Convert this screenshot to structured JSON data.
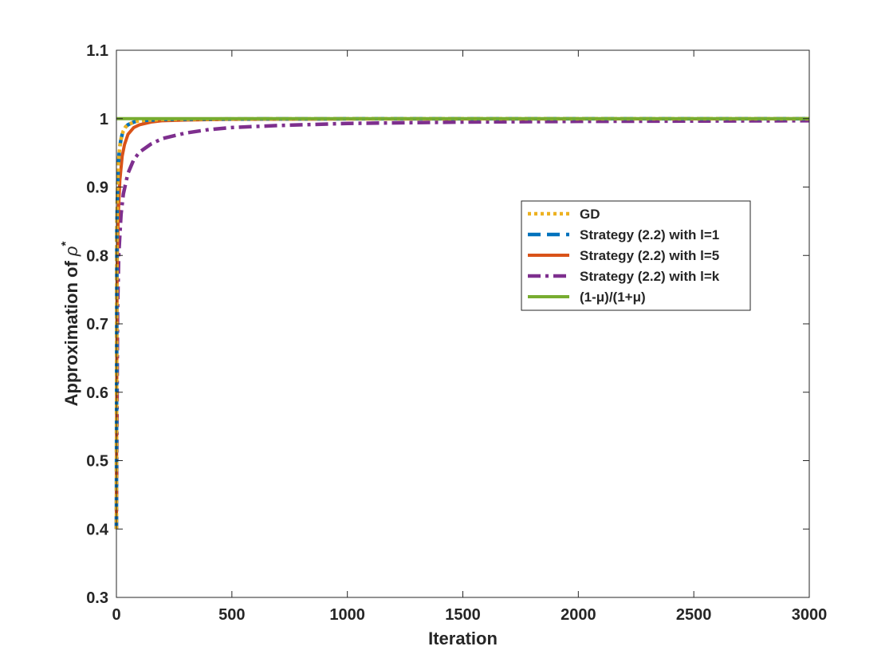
{
  "chart_data": {
    "type": "line",
    "title": "",
    "xlabel": "Iteration",
    "ylabel": "Approximation of ρ*",
    "ylabel_parts": {
      "text": "Approximation of ",
      "symbol": "ρ",
      "superscript": "*"
    },
    "xlim": [
      0,
      3000
    ],
    "ylim": [
      0.3,
      1.1
    ],
    "xticks": [
      0,
      500,
      1000,
      1500,
      2000,
      2500,
      3000
    ],
    "xtick_labels": [
      "0",
      "500",
      "1000",
      "1500",
      "2000",
      "2500",
      "3000"
    ],
    "yticks": [
      0.3,
      0.4,
      0.5,
      0.6,
      0.7,
      0.8,
      0.9,
      1,
      1.1
    ],
    "ytick_labels": [
      "0.3",
      "0.4",
      "0.5",
      "0.6",
      "0.7",
      "0.8",
      "0.9",
      "1",
      "1.1"
    ],
    "grid": false,
    "legend_position": "center-right",
    "series": [
      {
        "name": "GD",
        "color": "#EDB120",
        "style": "dotted",
        "x": [
          0,
          2,
          5,
          8,
          12,
          16,
          20,
          25,
          30,
          40,
          50,
          75,
          100,
          200,
          500,
          1000,
          3000
        ],
        "y": [
          0.4,
          0.84,
          0.9,
          0.93,
          0.95,
          0.962,
          0.97,
          0.977,
          0.982,
          0.988,
          0.991,
          0.995,
          0.997,
          0.999,
          0.9996,
          0.9998,
          0.9999
        ]
      },
      {
        "name": "Strategy (2.2) with l=1",
        "color": "#0072BD",
        "style": "dashed",
        "x": [
          0,
          2,
          5,
          8,
          12,
          16,
          20,
          25,
          30,
          40,
          50,
          75,
          100,
          200,
          500,
          1000,
          3000
        ],
        "y": [
          0.4,
          0.84,
          0.9,
          0.93,
          0.95,
          0.962,
          0.97,
          0.977,
          0.982,
          0.988,
          0.991,
          0.995,
          0.997,
          0.999,
          0.9996,
          0.9998,
          0.9999
        ]
      },
      {
        "name": "Strategy (2.2) with l=5",
        "color": "#D95319",
        "style": "solid",
        "x": [
          0,
          3,
          8,
          15,
          25,
          35,
          50,
          75,
          100,
          150,
          200,
          300,
          500,
          1000,
          2000,
          3000
        ],
        "y": [
          0.4,
          0.78,
          0.86,
          0.91,
          0.945,
          0.962,
          0.977,
          0.987,
          0.991,
          0.995,
          0.997,
          0.998,
          0.999,
          0.9995,
          0.9997,
          0.9998
        ]
      },
      {
        "name": "Strategy (2.2) with l=k",
        "color": "#7E2F8E",
        "style": "dashdot",
        "x": [
          0,
          5,
          10,
          20,
          30,
          50,
          75,
          100,
          150,
          200,
          300,
          400,
          500,
          700,
          1000,
          1500,
          2000,
          2500,
          3000
        ],
        "y": [
          0.4,
          0.72,
          0.8,
          0.86,
          0.89,
          0.92,
          0.94,
          0.951,
          0.963,
          0.971,
          0.979,
          0.984,
          0.987,
          0.99,
          0.993,
          0.995,
          0.996,
          0.9965,
          0.997
        ]
      },
      {
        "name": "(1-μ)/(1+μ)",
        "color": "#77AC30",
        "style": "solid",
        "x": [
          0,
          3000
        ],
        "y": [
          1.0,
          1.0
        ]
      }
    ]
  }
}
